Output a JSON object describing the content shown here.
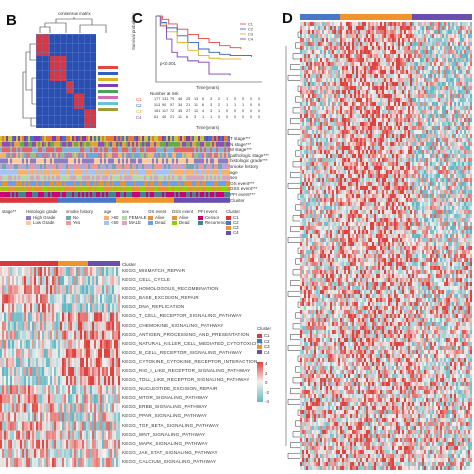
{
  "panels": {
    "B": "B",
    "C": "C",
    "D": "D"
  },
  "consensus": {
    "title": "consensus matrix"
  },
  "survival": {
    "pvalue": "p<0.001",
    "ylabel": "Survival probability",
    "xlabel": "Time(years)",
    "risk_title": "Number at risk",
    "risk_xlabel": "Time(years)",
    "strata": [
      "C1",
      "C2",
      "C3",
      "C4"
    ],
    "risk_rows": [
      [
        "177",
        "131",
        "79",
        "46",
        "25",
        "13",
        "6",
        "3",
        "2",
        "1",
        "0",
        "0",
        "0",
        "0"
      ],
      [
        "113",
        "90",
        "57",
        "34",
        "21",
        "11",
        "6",
        "3",
        "2",
        "1",
        "1",
        "1",
        "0",
        "0"
      ],
      [
        "151",
        "117",
        "72",
        "45",
        "27",
        "12",
        "4",
        "3",
        "1",
        "0",
        "0",
        "0",
        "0",
        "0"
      ],
      [
        "61",
        "40",
        "21",
        "11",
        "6",
        "3",
        "1",
        "1",
        "0",
        "0",
        "0",
        "0",
        "0",
        "0"
      ]
    ],
    "colors": [
      "#e8453c",
      "#2f5fc4",
      "#e0b020",
      "#7b3fb0"
    ]
  },
  "clinical_tracks": [
    "T stage***",
    "N stage***",
    "M stage***",
    "pathologic stage***",
    "histologic grade***",
    "smoke history",
    "age",
    "sex",
    "OS event***",
    "DSS event***",
    "PFI event***",
    "Cluster"
  ],
  "clinical_legend": {
    "headers": [
      "stage**",
      "Histologic grade",
      "smoke history",
      "age",
      "sex",
      "OS event",
      "DSS event",
      "PFI event",
      "Cluster"
    ],
    "grade_items": [
      "High Grade",
      "Low Grade"
    ],
    "smoke_items": [
      "No",
      "Yes"
    ],
    "age_items": [
      ">60",
      "<60"
    ],
    "sex_items": [
      "FEMALE",
      "MALE"
    ],
    "os_items": [
      "Alive",
      "Dead"
    ],
    "dss_items": [
      "Alive",
      "Dead"
    ],
    "pfi_items": [
      "Censor",
      "Recurrence"
    ],
    "cluster_items": [
      "C1",
      "C2",
      "C3",
      "C4"
    ]
  },
  "kegg_header": "Cluster",
  "kegg_pathways": [
    "KEGG_MISMATCH_REPAIR",
    "KEGG_CELL_CYCLE",
    "KEGG_HOMOLOGOUS_RECOMBINATION",
    "KEGG_BASE_EXCISION_REPAIR",
    "KEGG_DNA_REPLICATION",
    "KEGG_T_CELL_RECEPTOR_SIGNALING_PATHWAY",
    "KEGG_CHEMOKINE_SIGNALING_PATHWAY",
    "KEGG_ANTIGEN_PROCESSING_AND_PRESENTATION",
    "KEGG_NATURAL_KILLER_CELL_MEDIATED_CYTOTOXICITY",
    "KEGG_B_CELL_RECEPTOR_SIGNALING_PATHWAY",
    "KEGG_CYTOKINE_CYTOKINE_RECEPTOR_INTERACTION",
    "KEGG_RIG_I_LIKE_RECEPTOR_SIGNALING_PATHWAY",
    "KEGG_TOLL_LIKE_RECEPTOR_SIGNALING_PATHWAY",
    "KEGG_NUCLEOTIDE_EXCISION_REPAIR",
    "KEGG_MTOR_SIGNALING_PATHWAY",
    "KEGG_ERBB_SIGNALING_PATHWAY",
    "KEGG_PPAR_SIGNALING_PATHWAY",
    "KEGG_TGF_BETA_SIGNALING_PATHWAY",
    "KEGG_WNT_SIGNALING_PATHWAY",
    "KEGG_MAPK_SIGNALING_PATHWAY",
    "KEGG_JAK_STAT_SIGNALING_PATHWAY",
    "KEGG_CALCIUM_SIGNALING_PATHWAY"
  ],
  "kegg_legend": {
    "title": "Cluster",
    "clusters": [
      "C1",
      "C2",
      "C3",
      "C4"
    ],
    "scale": [
      "4",
      "2",
      "0",
      "-2",
      "-4"
    ]
  },
  "colors": {
    "heat_red": "#e0433f",
    "heat_blue": "#5fb8c4",
    "heat_white": "#f5f0ee",
    "cluster_blue": "#4a78c9",
    "cluster_orange": "#f0932b",
    "cluster_purple": "#6b4fb0",
    "cluster_red": "#d9363e"
  }
}
